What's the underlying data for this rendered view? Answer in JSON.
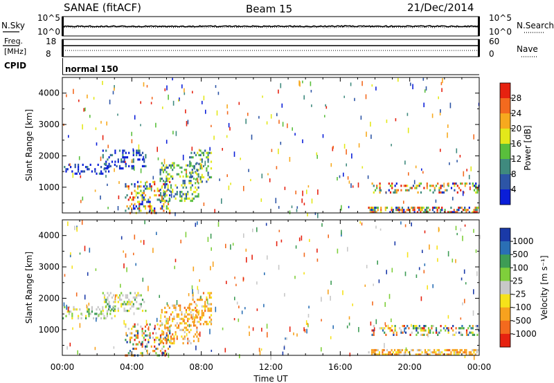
{
  "header": {
    "station": "SANAE (fitACF)",
    "beam": "Beam 15",
    "date": "21/Dec/2014"
  },
  "panels": {
    "nsky_label": "N.Sky",
    "nsearch_label": "N.Search",
    "noise_top_tick": "10^5",
    "noise_bottom_tick": "10^0",
    "freq_label": "Freq.",
    "freq_unit": "[MHz]",
    "freq_ticks": [
      "18",
      "8"
    ],
    "nave_label": "Nave",
    "nave_ticks": [
      "60",
      "0"
    ],
    "cpid_label": "CPID",
    "cpid_value": "normal 150"
  },
  "chart_data": [
    {
      "type": "heatmap",
      "name": "power",
      "ylabel": "Slant Range [km]",
      "ylim": [
        180,
        4500
      ],
      "yticks": [
        1000,
        2000,
        3000,
        4000
      ],
      "xlim": [
        0,
        24
      ],
      "xlabel": "",
      "colorbar_label": "Power [dB]",
      "colorbar_ticks": [
        "4",
        "8",
        "12",
        "16",
        "20",
        "24",
        "28"
      ],
      "colorbar_colors": [
        "#0a1ed8",
        "#2d55a6",
        "#3f8a7e",
        "#59bf3c",
        "#e3e81a",
        "#f7a91e",
        "#f36a1e",
        "#e62210"
      ],
      "echo_regions": [
        {
          "t0": 0.0,
          "t1": 3.0,
          "r0": 1450,
          "r1": 1750,
          "dominant": "low"
        },
        {
          "t0": 2.3,
          "t1": 4.8,
          "r0": 1600,
          "r1": 2200,
          "dominant": "low"
        },
        {
          "t0": 3.6,
          "t1": 6.2,
          "r0": 200,
          "r1": 1200,
          "dominant": "mixed"
        },
        {
          "t0": 5.6,
          "t1": 7.8,
          "r0": 600,
          "r1": 1800,
          "dominant": "mid"
        },
        {
          "t0": 7.3,
          "t1": 8.6,
          "r0": 1200,
          "r1": 2200,
          "dominant": "mid"
        },
        {
          "t0": 17.6,
          "t1": 24.0,
          "r0": 180,
          "r1": 380,
          "dominant": "mixed"
        },
        {
          "t0": 17.8,
          "t1": 24.0,
          "r0": 800,
          "r1": 1150,
          "dominant": "mixed"
        }
      ]
    },
    {
      "type": "heatmap",
      "name": "velocity",
      "ylabel": "Slant Range [km]",
      "ylim": [
        180,
        4500
      ],
      "yticks": [
        1000,
        2000,
        3000,
        4000
      ],
      "xlim": [
        0,
        24
      ],
      "xlabel": "Time UT",
      "xticks": [
        "00:00",
        "04:00",
        "08:00",
        "12:00",
        "16:00",
        "20:00",
        "00:00"
      ],
      "colorbar_label": "Velocity [m s⁻¹]",
      "colorbar_ticks": [
        "1000",
        "500",
        "100",
        "25",
        "-25",
        "-100",
        "-500",
        "-1000"
      ],
      "colorbar_colors": [
        "#1a3aa8",
        "#2a6fb5",
        "#3e9c55",
        "#7fcf3b",
        "#c8c8c8",
        "#f6e21a",
        "#f7a21e",
        "#f36a1e",
        "#e62210"
      ],
      "echo_regions": [
        {
          "t0": 0.0,
          "t1": 3.0,
          "r0": 1350,
          "r1": 1750,
          "dominant": "neutral"
        },
        {
          "t0": 2.3,
          "t1": 4.8,
          "r0": 1600,
          "r1": 2200,
          "dominant": "neutral"
        },
        {
          "t0": 3.6,
          "t1": 6.2,
          "r0": 200,
          "r1": 1200,
          "dominant": "mixed"
        },
        {
          "t0": 5.6,
          "t1": 7.8,
          "r0": 600,
          "r1": 1800,
          "dominant": "away"
        },
        {
          "t0": 7.3,
          "t1": 8.6,
          "r0": 1200,
          "r1": 2200,
          "dominant": "away"
        },
        {
          "t0": 17.6,
          "t1": 24.0,
          "r0": 180,
          "r1": 380,
          "dominant": "away"
        },
        {
          "t0": 17.8,
          "t1": 24.0,
          "r0": 800,
          "r1": 1150,
          "dominant": "mixed"
        }
      ]
    }
  ]
}
